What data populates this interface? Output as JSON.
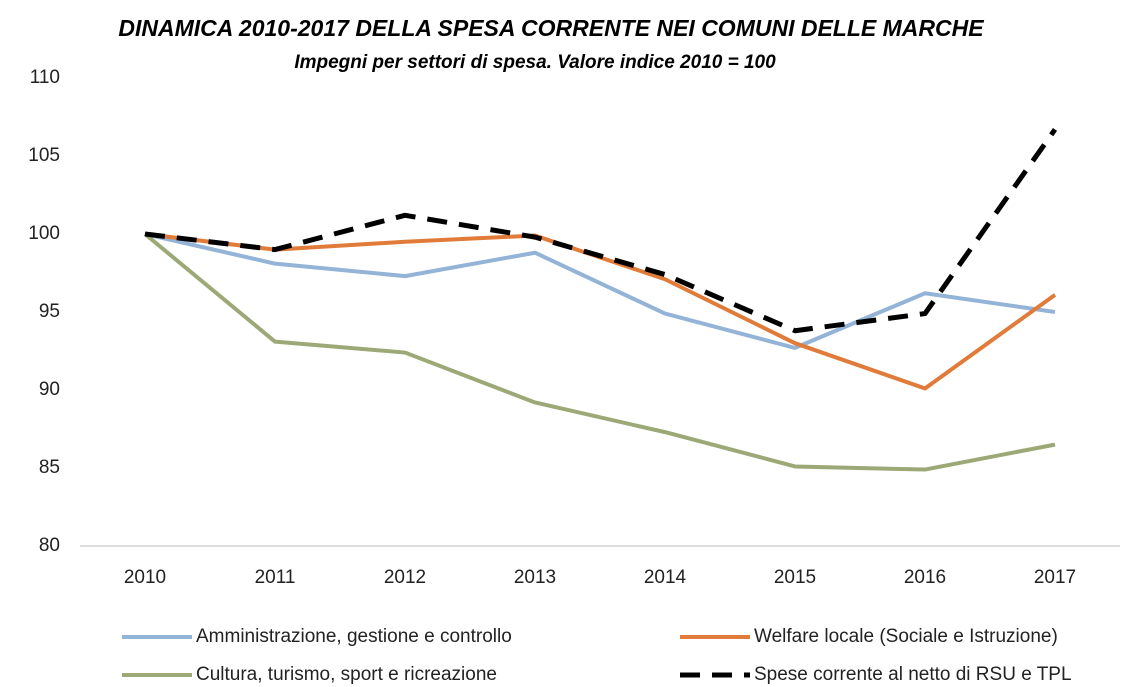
{
  "chart_data": {
    "type": "line",
    "title": "DINAMICA 2010-2017 DELLA SPESA CORRENTE NEI COMUNI DELLE MARCHE",
    "subtitle": "Impegni per settori di spesa. Valore indice 2010  = 100",
    "categories": [
      "2010",
      "2011",
      "2012",
      "2013",
      "2014",
      "2015",
      "2016",
      "2017"
    ],
    "series": [
      {
        "name": "Amministrazione, gestione e controllo",
        "color": "#93b3d7",
        "dashed": false,
        "values": [
          100,
          98.1,
          97.3,
          98.8,
          94.9,
          92.7,
          96.2,
          95.0
        ]
      },
      {
        "name": "Welfare locale (Sociale e Istruzione)",
        "color": "#e07b39",
        "dashed": false,
        "values": [
          100,
          99.0,
          99.5,
          99.9,
          97.1,
          93.0,
          90.1,
          96.1
        ]
      },
      {
        "name": "Cultura, turismo, sport e ricreazione",
        "color": "#9ca977",
        "dashed": false,
        "values": [
          100,
          93.1,
          92.4,
          89.2,
          87.3,
          85.1,
          84.9,
          86.5
        ]
      },
      {
        "name": "Spese corrente al netto di RSU e TPL",
        "color": "#000000",
        "dashed": true,
        "values": [
          100,
          99.0,
          101.2,
          99.8,
          97.4,
          93.8,
          94.9,
          106.7
        ]
      }
    ],
    "ylim": [
      80,
      110
    ],
    "yticks": [
      80,
      85,
      90,
      95,
      100,
      105,
      110
    ],
    "grid": false,
    "legend": "bottom"
  }
}
